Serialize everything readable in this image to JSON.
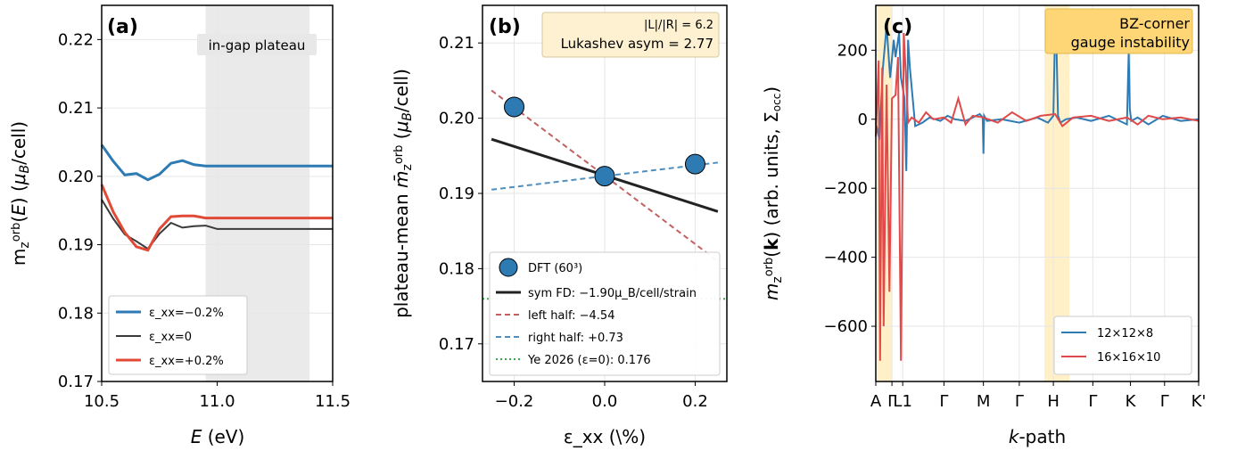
{
  "chart_data": [
    {
      "type": "line",
      "panel": "(a)",
      "xlabel": "E (eV)",
      "ylabel": "m_z^orb(E) (μ_B/cell)",
      "xlim": [
        10.5,
        11.5
      ],
      "ylim": [
        0.17,
        0.225
      ],
      "xticks": [
        10.5,
        11.0,
        11.5
      ],
      "xtick_labels": [
        "10.5",
        "11.0",
        "11.5"
      ],
      "yticks": [
        0.17,
        0.18,
        0.19,
        0.2,
        0.21,
        0.22
      ],
      "ytick_labels": [
        "0.17",
        "0.18",
        "0.19",
        "0.20",
        "0.21",
        "0.22"
      ],
      "shade": {
        "x": [
          10.95,
          11.4
        ],
        "label": "in-gap plateau"
      },
      "legend_position": "lower-left",
      "series": [
        {
          "name": "ε_xx=−0.2%",
          "color": "#2e7bb4",
          "x": [
            10.5,
            10.55,
            10.6,
            10.65,
            10.7,
            10.75,
            10.8,
            10.85,
            10.9,
            10.95,
            11.0,
            11.1,
            11.2,
            11.3,
            11.4,
            11.5
          ],
          "y": [
            0.2046,
            0.2022,
            0.2002,
            0.2004,
            0.1995,
            0.2003,
            0.2019,
            0.2023,
            0.2017,
            0.2015,
            0.2015,
            0.2015,
            0.2015,
            0.2015,
            0.2015,
            0.2015
          ]
        },
        {
          "name": "ε_xx=0",
          "color": "#3a3a3a",
          "x": [
            10.5,
            10.55,
            10.6,
            10.65,
            10.7,
            10.75,
            10.8,
            10.85,
            10.9,
            10.95,
            11.0,
            11.1,
            11.2,
            11.3,
            11.4,
            11.5
          ],
          "y": [
            0.1966,
            0.1938,
            0.1915,
            0.1905,
            0.1894,
            0.1916,
            0.1932,
            0.1925,
            0.1927,
            0.1928,
            0.1923,
            0.1923,
            0.1923,
            0.1923,
            0.1923,
            0.1923
          ]
        },
        {
          "name": "ε_xx=+0.2%",
          "color": "#e04a36",
          "x": [
            10.5,
            10.55,
            10.6,
            10.65,
            10.7,
            10.75,
            10.8,
            10.85,
            10.9,
            10.95,
            11.0,
            11.1,
            11.2,
            11.3,
            11.4,
            11.5
          ],
          "y": [
            0.1988,
            0.1948,
            0.1918,
            0.1897,
            0.1892,
            0.1923,
            0.1941,
            0.1942,
            0.1942,
            0.1939,
            0.1939,
            0.1939,
            0.1939,
            0.1939,
            0.1939,
            0.1939
          ]
        }
      ]
    },
    {
      "type": "scatter",
      "panel": "(b)",
      "xlabel": "ε_xx (\\%)",
      "ylabel": "plateau-mean m̄_z^orb (μ_B/cell)",
      "xlim": [
        -0.27,
        0.27
      ],
      "ylim": [
        0.165,
        0.215
      ],
      "xticks": [
        -0.2,
        0.0,
        0.2
      ],
      "xtick_labels": [
        "−0.2",
        "0.0",
        "0.2"
      ],
      "yticks": [
        0.17,
        0.18,
        0.19,
        0.2,
        0.21
      ],
      "ytick_labels": [
        "0.17",
        "0.18",
        "0.19",
        "0.20",
        "0.21"
      ],
      "annotation": [
        "|L|/|R| = 6.2",
        "Lukashev asym = 2.77"
      ],
      "points": {
        "name": "DFT (60³)",
        "color": "#2e7bb4",
        "x": [
          -0.2,
          0.0,
          0.2
        ],
        "y": [
          0.2015,
          0.1923,
          0.1939
        ]
      },
      "lines": [
        {
          "name": "sym FD: −1.90μ_B/cell/strain",
          "color": "#222222",
          "dash": "solid",
          "x": [
            -0.25,
            0.25
          ],
          "y": [
            0.1972,
            0.1876
          ]
        },
        {
          "name": "left half: −4.54",
          "color": "#c46060",
          "dash": "dashed",
          "x": [
            -0.25,
            0.25
          ],
          "y": [
            0.2037,
            0.181
          ]
        },
        {
          "name": "right half: +0.73",
          "color": "#4f8fc0",
          "dash": "dashed",
          "x": [
            -0.25,
            0.25
          ],
          "y": [
            0.1905,
            0.1941
          ]
        },
        {
          "name": "Ye 2026 (ε=0): 0.176",
          "color": "#3aa84a",
          "dash": "dotted",
          "x": [
            -0.27,
            0.27
          ],
          "y": [
            0.176,
            0.176
          ]
        }
      ],
      "legend_position": "lower-left"
    },
    {
      "type": "line",
      "panel": "(c)",
      "xlabel": "k-path",
      "ylabel": "m_z^orb(k) (arb. units, Σ_occ)",
      "xlim": [
        0,
        9
      ],
      "ylim": [
        -760,
        330
      ],
      "xticks": [
        0,
        0.45,
        0.75,
        1.9,
        3.0,
        4.0,
        4.95,
        6.05,
        7.1,
        8.05,
        9.0
      ],
      "xtick_labels": [
        "A",
        "Γ",
        "L1",
        "Γ",
        "M",
        "Γ",
        "H",
        "Γ",
        "K",
        "Γ",
        "K'"
      ],
      "yticks": [
        -600,
        -400,
        -200,
        0,
        200
      ],
      "ytick_labels": [
        "−600",
        "−400",
        "−200",
        "0",
        "200"
      ],
      "shade_regions": [
        [
          0.05,
          0.45
        ],
        [
          4.7,
          5.4
        ]
      ],
      "annotation": [
        "BZ-corner",
        "gauge instability"
      ],
      "legend_position": "lower-right",
      "series": [
        {
          "name": "12×12×8",
          "color": "#2e7bb4",
          "x": [
            0,
            0.1,
            0.2,
            0.3,
            0.4,
            0.5,
            0.55,
            0.65,
            0.7,
            0.8,
            0.85,
            0.9,
            0.95,
            1.1,
            1.3,
            1.5,
            1.8,
            2.0,
            2.2,
            2.5,
            2.9,
            2.98,
            3.0,
            3.02,
            3.1,
            3.5,
            4.0,
            4.5,
            4.8,
            4.95,
            5.0,
            5.04,
            5.08,
            5.15,
            5.3,
            5.6,
            6.0,
            6.5,
            7.0,
            7.05,
            7.08,
            7.12,
            7.3,
            7.6,
            8.0,
            8.5,
            9.0
          ],
          "y": [
            -10,
            -60,
            150,
            270,
            120,
            230,
            180,
            250,
            120,
            60,
            -150,
            230,
            150,
            -20,
            -10,
            5,
            -5,
            10,
            0,
            -5,
            15,
            5,
            -100,
            10,
            -5,
            0,
            -10,
            5,
            -10,
            10,
            270,
            200,
            10,
            -10,
            0,
            5,
            -5,
            10,
            -15,
            200,
            30,
            -5,
            5,
            -15,
            10,
            -5,
            0
          ]
        },
        {
          "name": "16×16×10",
          "color": "#e04a4a",
          "x": [
            0,
            0.08,
            0.12,
            0.18,
            0.22,
            0.3,
            0.38,
            0.45,
            0.55,
            0.62,
            0.7,
            0.78,
            0.85,
            0.9,
            1.0,
            1.2,
            1.4,
            1.6,
            1.9,
            2.1,
            2.3,
            2.5,
            2.7,
            3.0,
            3.4,
            3.8,
            4.2,
            4.6,
            5.0,
            5.2,
            5.5,
            6.0,
            6.5,
            7.0,
            7.3,
            7.6,
            8.0,
            8.5,
            9.0
          ],
          "y": [
            -50,
            170,
            -700,
            150,
            -600,
            100,
            -500,
            60,
            70,
            180,
            -700,
            250,
            100,
            -10,
            5,
            -10,
            20,
            0,
            5,
            -10,
            60,
            -15,
            10,
            5,
            -10,
            20,
            -5,
            10,
            15,
            -20,
            5,
            10,
            -5,
            5,
            -15,
            10,
            0,
            5,
            -5
          ]
        }
      ]
    }
  ]
}
